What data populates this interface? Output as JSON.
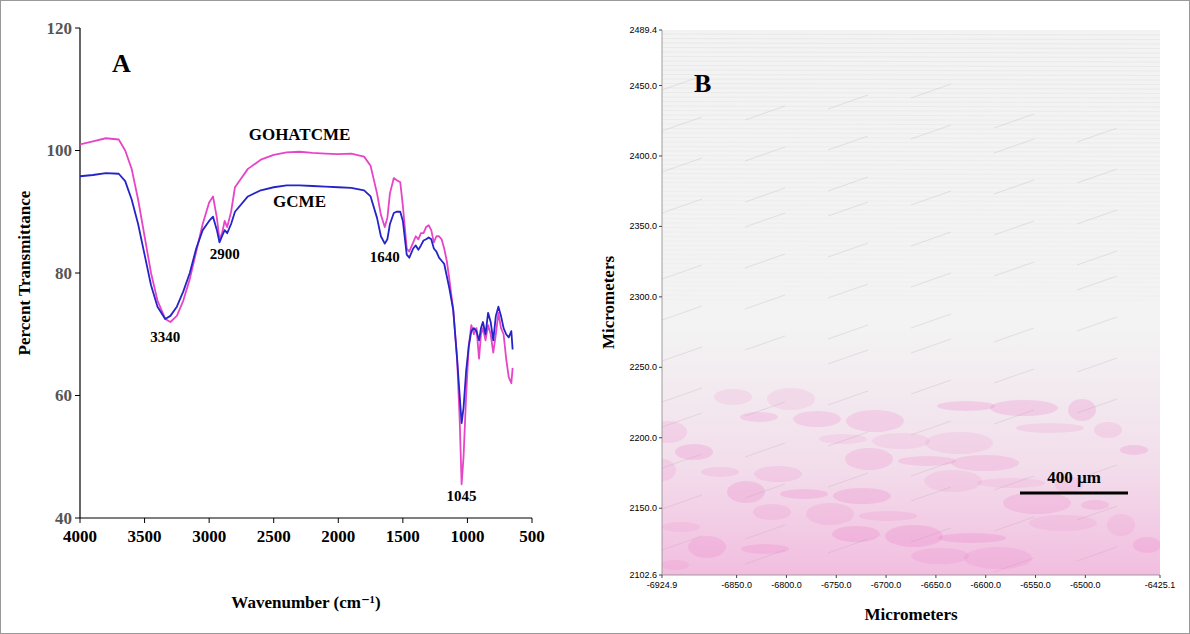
{
  "chart_data": [
    {
      "type": "line",
      "panel": "A",
      "xlabel": "Wavenumber (cm⁻¹)",
      "ylabel": "Percent Transmittance",
      "xlim": [
        4000,
        500
      ],
      "ylim": [
        40,
        120
      ],
      "xticks": [
        4000,
        3500,
        3000,
        2500,
        2000,
        1500,
        1000,
        500
      ],
      "yticks": [
        40,
        60,
        80,
        100,
        120
      ],
      "grid": false,
      "x": [
        4000,
        3900,
        3800,
        3700,
        3650,
        3600,
        3550,
        3500,
        3450,
        3400,
        3340,
        3300,
        3250,
        3200,
        3150,
        3100,
        3050,
        3000,
        2970,
        2940,
        2920,
        2900,
        2880,
        2860,
        2830,
        2800,
        2700,
        2600,
        2500,
        2400,
        2300,
        2200,
        2100,
        2000,
        1900,
        1800,
        1750,
        1700,
        1670,
        1640,
        1620,
        1600,
        1570,
        1550,
        1520,
        1500,
        1470,
        1450,
        1420,
        1400,
        1380,
        1360,
        1340,
        1320,
        1300,
        1280,
        1260,
        1240,
        1220,
        1200,
        1180,
        1160,
        1140,
        1110,
        1080,
        1060,
        1045,
        1030,
        1010,
        990,
        970,
        950,
        930,
        910,
        895,
        880,
        860,
        840,
        820,
        800,
        780,
        760,
        740,
        720,
        700,
        680,
        660,
        650
      ],
      "series": [
        {
          "name": "GOHATCME",
          "color": "#e645c8",
          "values": [
            101,
            101.5,
            102,
            101.8,
            100,
            97,
            92,
            86,
            80,
            75.5,
            72.5,
            72,
            73,
            75.5,
            79,
            83.5,
            88,
            91.5,
            92.5,
            89,
            85.5,
            86.5,
            88.5,
            87.5,
            90,
            94,
            97,
            98.5,
            99.3,
            99.7,
            99.8,
            99.6,
            99.5,
            99.4,
            99.5,
            99,
            97.5,
            93,
            89.5,
            87.5,
            89,
            93,
            95.5,
            95.2,
            94.8,
            91,
            84,
            83.5,
            85,
            86,
            85.5,
            86.5,
            86.5,
            87.5,
            87.8,
            87,
            85,
            86,
            86,
            85.5,
            84,
            82,
            79,
            74,
            66,
            56,
            45.5,
            50,
            60,
            68,
            71.5,
            70,
            71,
            66,
            70,
            71,
            69,
            71.5,
            70,
            67,
            70,
            73.5,
            71,
            70,
            66,
            63,
            62,
            64.5
          ]
        },
        {
          "name": "GCME",
          "color": "#2424c8",
          "values": [
            95.8,
            96,
            96.3,
            96.2,
            95,
            92,
            88,
            83,
            78,
            74.5,
            72.5,
            73,
            74.5,
            77,
            80,
            84,
            87,
            88.5,
            89.2,
            87,
            85,
            86,
            87,
            86.5,
            88,
            90,
            92.5,
            93.5,
            94,
            94.3,
            94.3,
            94.2,
            94.1,
            94,
            93.9,
            93.5,
            92.5,
            89,
            86,
            84.8,
            85.5,
            88,
            89.8,
            90,
            90,
            88.5,
            83,
            82.5,
            84,
            84.5,
            83.8,
            84.5,
            85.3,
            85.5,
            85.8,
            85.5,
            84,
            83.5,
            82.5,
            82,
            81.5,
            79.5,
            77.5,
            74,
            66,
            60,
            55.5,
            58,
            64,
            68,
            70.5,
            71,
            70.5,
            69,
            71,
            72,
            70,
            73.5,
            72,
            69,
            73,
            74.5,
            73,
            71,
            70,
            69.5,
            70.5,
            67.5
          ]
        }
      ],
      "annotations": [
        {
          "text": "3340",
          "x": 3340,
          "y": 70.5
        },
        {
          "text": "2900",
          "x": 2880,
          "y": 84
        },
        {
          "text": "1640",
          "x": 1640,
          "y": 83.5
        },
        {
          "text": "1045",
          "x": 1045,
          "y": 44.5
        }
      ]
    },
    {
      "type": "image",
      "panel": "B",
      "xlabel": "Micrometers",
      "ylabel": "Micrometers",
      "xlim": [
        -6924.9,
        -6425.1
      ],
      "ylim": [
        2102.6,
        2489.4
      ],
      "xticks": [
        -6924.9,
        {
          "value": -6850,
          "label": "-6850.0"
        },
        {
          "value": -6800,
          "label": "-6800.0"
        },
        {
          "value": -6750,
          "label": "-6750.0"
        },
        {
          "value": -6700,
          "label": "-6700.0"
        },
        {
          "value": -6650,
          "label": "-6650.0"
        },
        {
          "value": -6600,
          "label": "-6600.0"
        },
        {
          "value": -6550,
          "label": "-6550.0"
        },
        {
          "value": -6500,
          "label": "-6500.0"
        },
        -6425.1
      ],
      "yticks": [
        2102.6,
        {
          "value": 2150,
          "label": "2150.0"
        },
        {
          "value": 2200,
          "label": "2200.0"
        },
        {
          "value": 2250,
          "label": "2250.0"
        },
        {
          "value": 2300,
          "label": "2300.0"
        },
        {
          "value": 2350,
          "label": "2350.0"
        },
        {
          "value": 2400,
          "label": "2400.0"
        },
        {
          "value": 2450,
          "label": "2450.0"
        },
        2489.4
      ],
      "scale_bar": "400 µm"
    }
  ]
}
